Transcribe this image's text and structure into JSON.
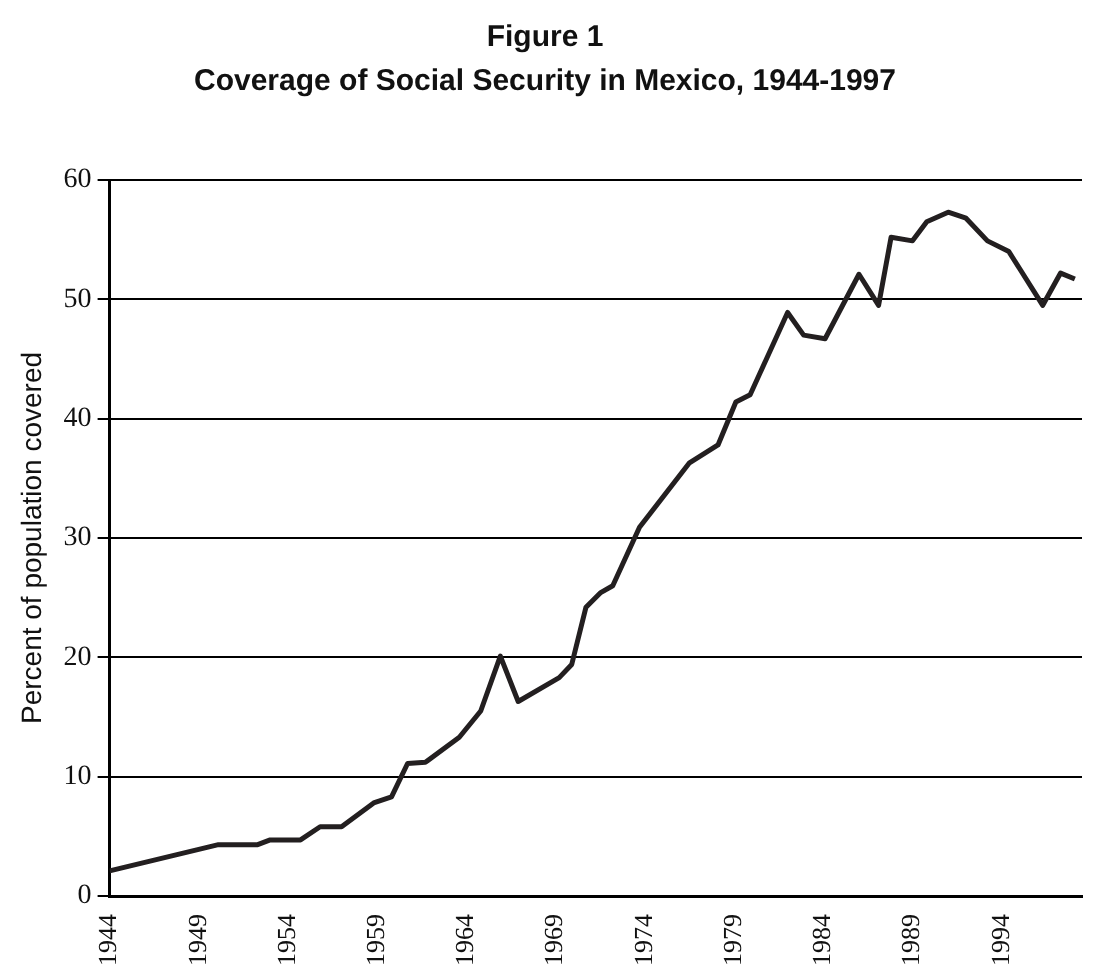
{
  "chart_data": {
    "type": "line",
    "title": "Figure 1",
    "subtitle": "Coverage of Social Security in Mexico, 1944-1997",
    "ylabel": "Percent of population covered",
    "x": [
      1944,
      1950.1,
      1952.3,
      1953,
      1954.7,
      1955.8,
      1957,
      1958.8,
      1959.8,
      1960.7,
      1961.7,
      1963.6,
      1964.8,
      1965.9,
      1966.9,
      1969.2,
      1969.9,
      1970.7,
      1971.5,
      1972.2,
      1973.7,
      1976.5,
      1978.1,
      1979.1,
      1979.9,
      1982,
      1982.9,
      1984.1,
      1986,
      1987.1,
      1987.8,
      1989,
      1989.8,
      1991,
      1992,
      1993.2,
      1994.4,
      1996.3,
      1997.3,
      1998.1
    ],
    "values": [
      2.1,
      4.3,
      4.3,
      4.7,
      4.7,
      5.8,
      5.8,
      7.8,
      8.3,
      11.1,
      11.2,
      13.3,
      15.5,
      20.1,
      16.3,
      18.3,
      19.4,
      24.2,
      25.4,
      26,
      30.9,
      36.3,
      37.8,
      41.4,
      42,
      48.9,
      47,
      46.7,
      52.1,
      49.5,
      55.2,
      54.9,
      56.5,
      57.3,
      56.8,
      54.9,
      54,
      49.5,
      52.2,
      51.7
    ],
    "color": "#231f20",
    "marker": "none",
    "line_style": "solid",
    "legend": false,
    "grid": "y",
    "xlim": [
      1944,
      1998.5
    ],
    "xticks": [
      1944,
      1949,
      1954,
      1959,
      1964,
      1969,
      1974,
      1979,
      1984,
      1989,
      1994
    ],
    "ylim": [
      0,
      60
    ],
    "yticks": [
      0,
      10,
      20,
      30,
      40,
      50,
      60
    ]
  }
}
